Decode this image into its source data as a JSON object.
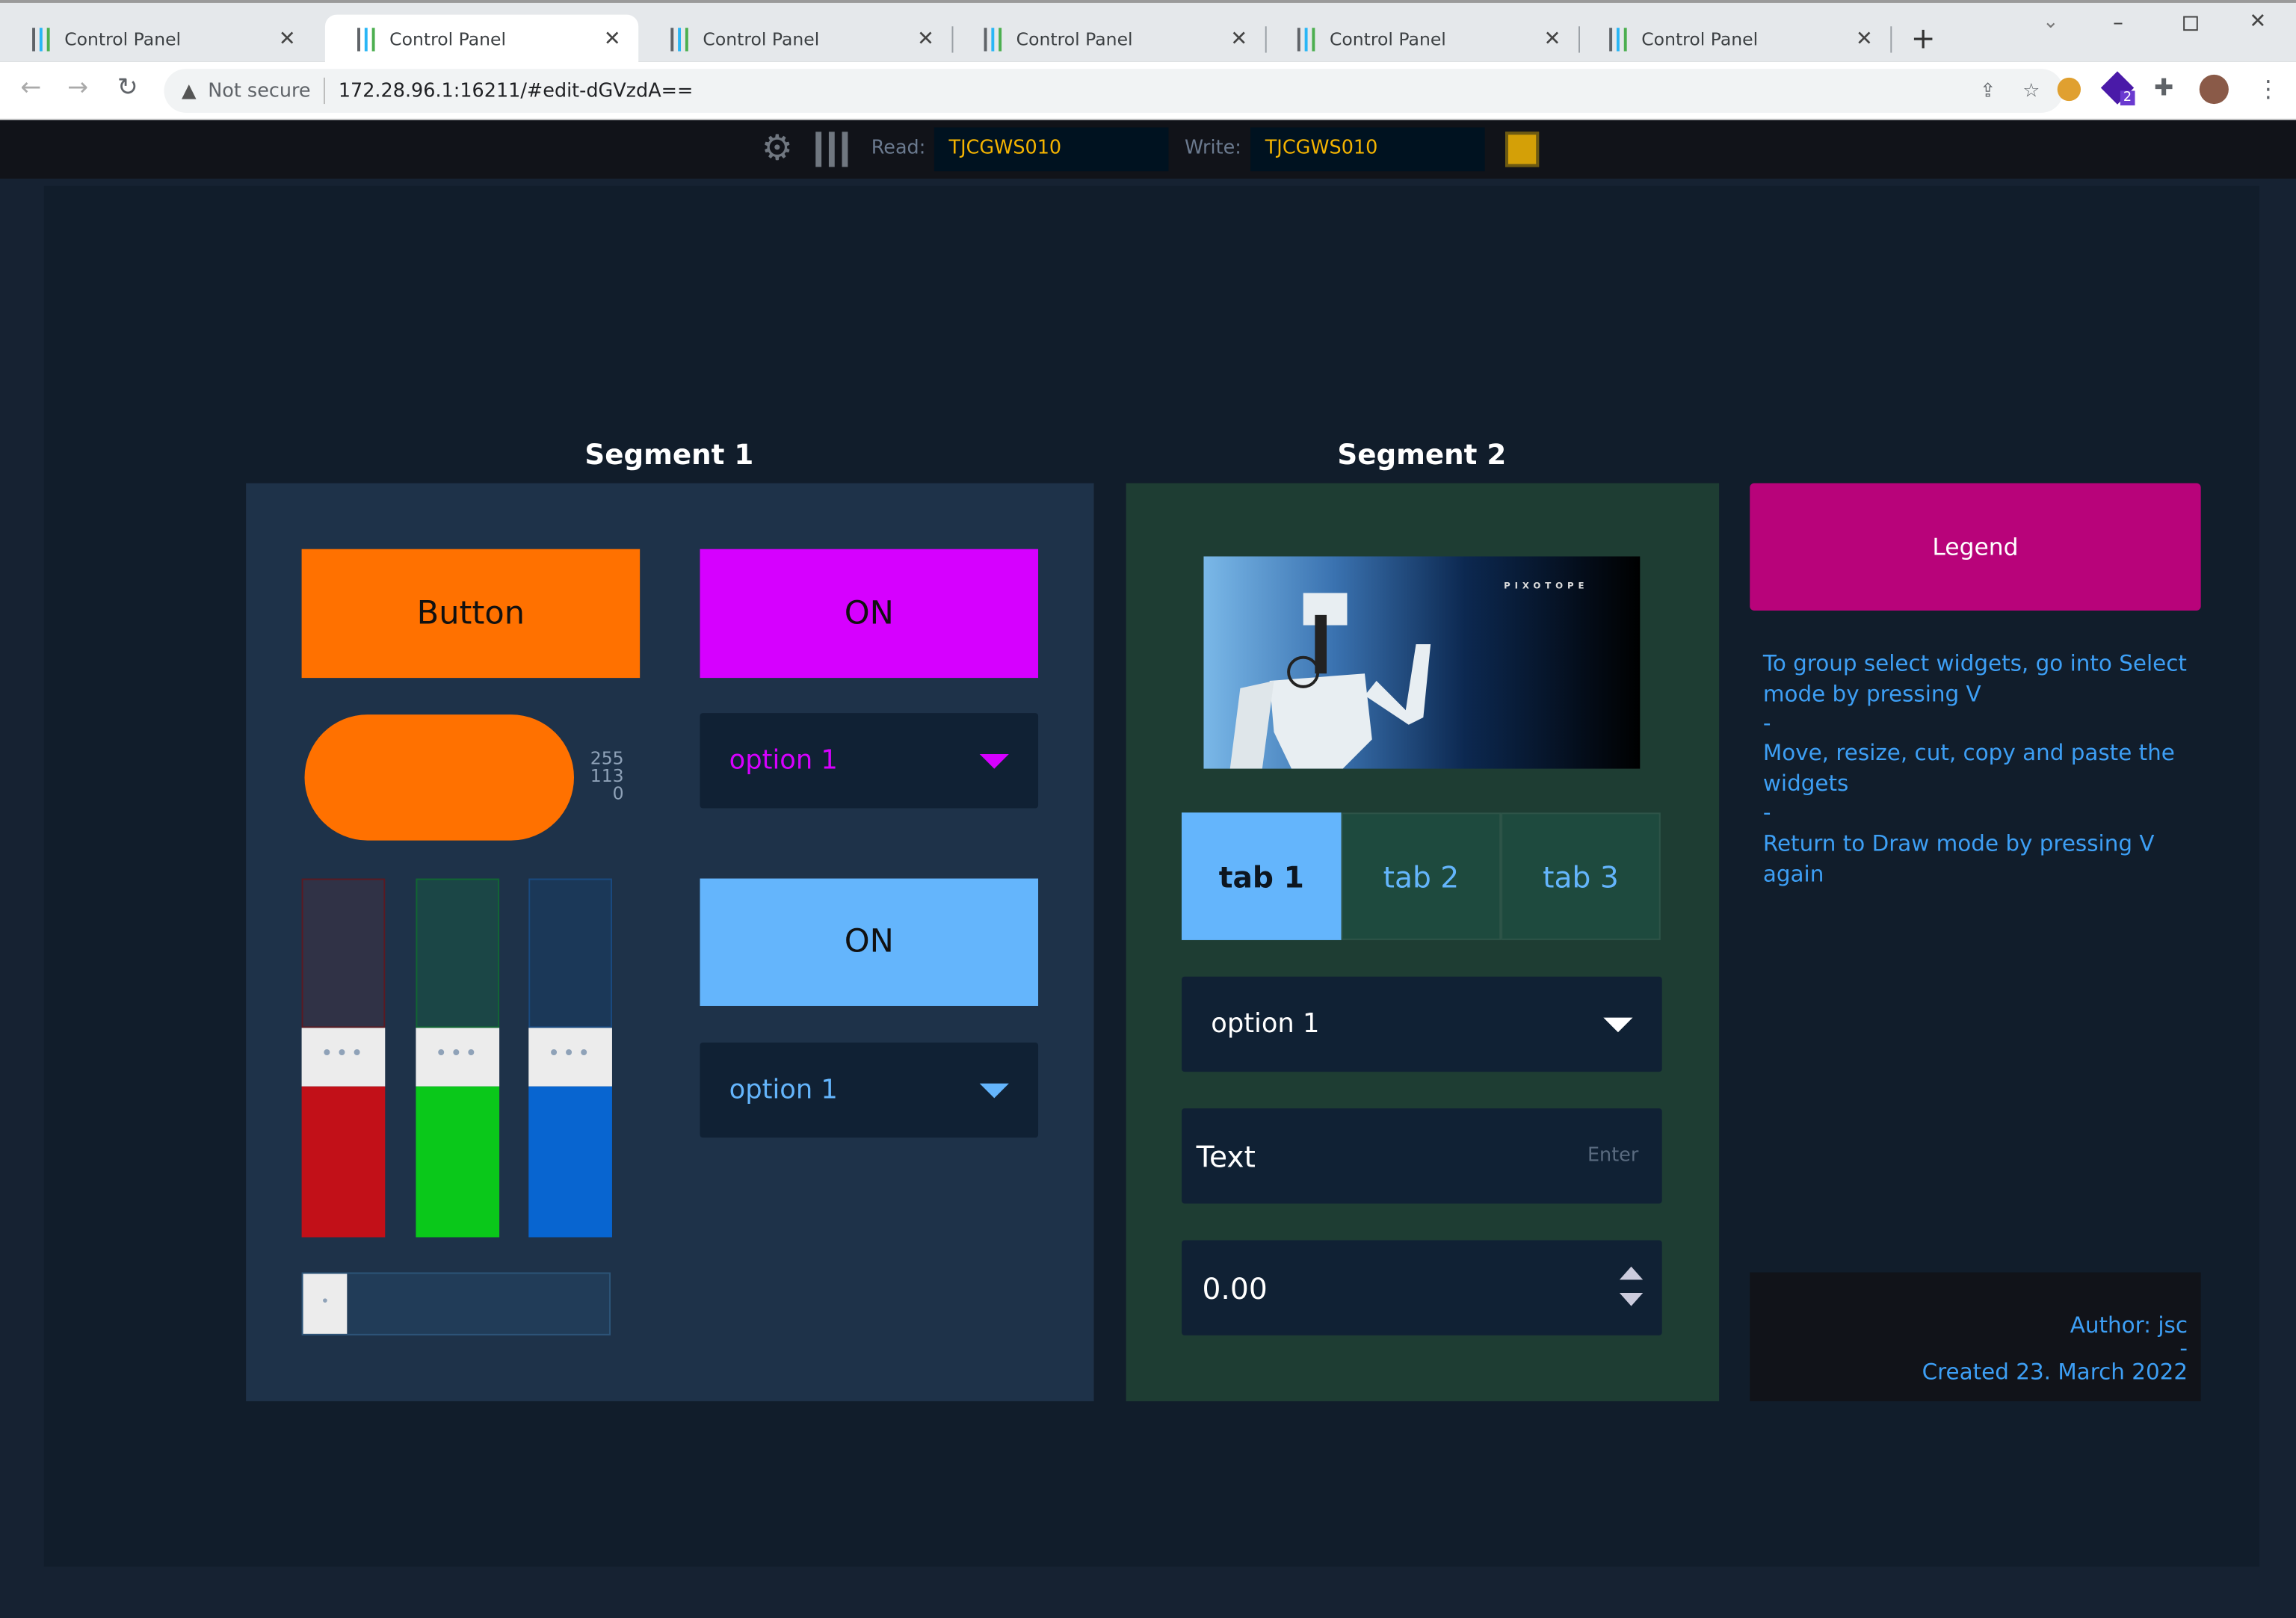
{
  "browser": {
    "tabs": [
      {
        "title": "Control Panel",
        "active": false
      },
      {
        "title": "Control Panel",
        "active": true
      },
      {
        "title": "Control Panel",
        "active": false
      },
      {
        "title": "Control Panel",
        "active": false
      },
      {
        "title": "Control Panel",
        "active": false
      },
      {
        "title": "Control Panel",
        "active": false
      }
    ],
    "security_label": "Not secure",
    "url": "172.28.96.1:16211/#edit-dGVzdA==",
    "extension_badge": "2"
  },
  "toolbar": {
    "read_label": "Read:",
    "read_value": "TJCGWS010",
    "write_label": "Write:",
    "write_value": "TJCGWS010",
    "status_color": "#d4a007"
  },
  "segment1": {
    "title": "Segment 1",
    "button_label": "Button",
    "toggle1_label": "ON",
    "dropdown1_value": "option 1",
    "color_preview": {
      "r": "255",
      "g": "113",
      "b": "0",
      "color": "#ff7100"
    },
    "toggle2_label": "ON",
    "dropdown2_value": "option 1",
    "rgb_sliders": [
      {
        "name": "red",
        "value": 0.42,
        "color": "#c21018"
      },
      {
        "name": "green",
        "value": 0.42,
        "color": "#0ac81a"
      },
      {
        "name": "blue",
        "value": 0.42,
        "color": "#0865d0"
      }
    ],
    "h_slider_value": 0
  },
  "segment2": {
    "title": "Segment 2",
    "image_logo": "PIXOTOPE",
    "tabs": [
      "tab 1",
      "tab 2",
      "tab 3"
    ],
    "active_tab": 0,
    "dropdown_value": "option 1",
    "text_value": "Text",
    "text_hint": "Enter",
    "number_value": "0.00"
  },
  "legend": {
    "title": "Legend",
    "lines": [
      "To group select widgets, go into Select mode by pressing V",
      "-",
      "Move, resize, cut, copy and paste the widgets",
      "-",
      "Return to Draw mode by pressing V again"
    ],
    "author": "Author: jsc",
    "sep": "-",
    "created": "Created 23. March 2022"
  },
  "colors": {
    "accent_orange": "#ff7100",
    "accent_magenta": "#d600ff",
    "accent_blue": "#64b5fc",
    "legend": "#b8037a"
  }
}
